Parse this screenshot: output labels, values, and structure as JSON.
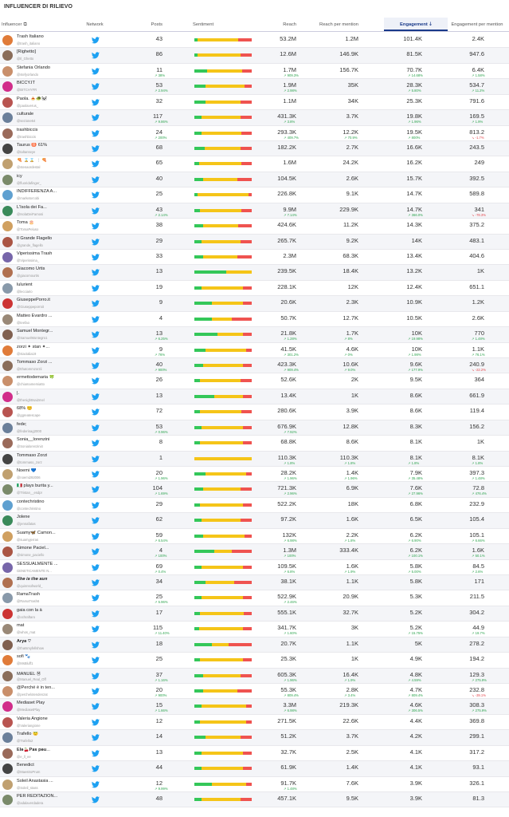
{
  "title": "INFLUENCER DI RILIEVO",
  "columns": {
    "influencer": "Influencer",
    "network": "Network",
    "posts": "Posts",
    "sentiment": "Sentiment",
    "reach": "Reach",
    "rpm": "Reach per mention",
    "engagement": "Engagement",
    "epm": "Engagement per mention"
  },
  "colors": {
    "positive": "#34c759",
    "neutral": "#f5c518",
    "negative": "#ef5350",
    "twitter": "#1da1f2"
  },
  "rows": [
    {
      "name": "Trash Italiano",
      "handle": "@trash_italiano",
      "posts": "43",
      "reach": "53.2M",
      "rpm": "1.2M",
      "eng": "101.4K",
      "epm": "2.4K",
      "s": [
        0.05,
        0.72,
        0.23
      ]
    },
    {
      "name": "[Righetto]",
      "handle": "@Il_Ghetto",
      "posts": "86",
      "reach": "12.6M",
      "rpm": "146.9K",
      "eng": "81.5K",
      "epm": "947.6",
      "s": [
        0.05,
        0.75,
        0.2
      ]
    },
    {
      "name": "Stefania Orlando",
      "handle": "@stefyorlando",
      "posts": "11",
      "dposts": "↗ 38%",
      "reach": "1.7M",
      "dreach": "↗ 909.3%",
      "rpm": "156.7K",
      "eng": "70.7K",
      "deng": "↗ 14.68%",
      "epm": "6.4K",
      "depm": "↗ 1.58%",
      "s": [
        0.22,
        0.62,
        0.16
      ]
    },
    {
      "name": "BICCY.IT",
      "handle": "@BITCHYFR",
      "posts": "53",
      "dposts": "↗ 2.94%",
      "reach": "1.9M",
      "dreach": "↗ 2.98%",
      "rpm": "35K",
      "eng": "28.3K",
      "deng": "↗ 5.80%",
      "epm": "534.7",
      "depm": "↗ 11.2%",
      "s": [
        0.2,
        0.68,
        0.12
      ]
    },
    {
      "name": "Paola. 🍝🐢🐼",
      "handle": "@paolaverus_",
      "posts": "32",
      "reach": "1.1M",
      "rpm": "34K",
      "eng": "25.3K",
      "epm": "791.6",
      "s": [
        0.2,
        0.6,
        0.2
      ]
    },
    {
      "name": "culturale",
      "handle": "@sezione64",
      "posts": "117",
      "dposts": "↗ 9.86%",
      "reach": "431.3K",
      "dreach": "↗ 3.8%",
      "rpm": "3.7K",
      "eng": "19.8K",
      "deng": "↗ 1.96%",
      "epm": "169.5",
      "depm": "↗ 1.9%",
      "s": [
        0.12,
        0.68,
        0.2
      ]
    },
    {
      "name": "trashbiccis",
      "handle": "@trashbiccis",
      "posts": "24",
      "dposts": "↗ 200%",
      "reach": "293.3K",
      "dreach": "↗ 409.7%",
      "rpm": "12.2K",
      "drpm": "↗ 70.9%",
      "eng": "19.5K",
      "deng": "↗ 800%",
      "epm": "813.2",
      "depm": "↘ -1.7%",
      "s": [
        0.12,
        0.7,
        0.18
      ]
    },
    {
      "name": "Taurus ♉ 61%",
      "handle": "@taltanseye",
      "posts": "68",
      "reach": "182.2K",
      "rpm": "2.7K",
      "eng": "16.6K",
      "epm": "243.5",
      "s": [
        0.18,
        0.62,
        0.2
      ]
    },
    {
      "name": "🍕 ⌛⌛ ❕🍕",
      "handle": "@stenaordestal",
      "posts": "65",
      "reach": "1.6M",
      "rpm": "24.2K",
      "eng": "16.2K",
      "epm": "249",
      "s": [
        0.08,
        0.74,
        0.18
      ]
    },
    {
      "name": "icy",
      "handle": "@fluoridafinger_",
      "posts": "40",
      "reach": "104.5K",
      "rpm": "2.6K",
      "eng": "15.7K",
      "epm": "392.5",
      "s": [
        0.15,
        0.6,
        0.25
      ]
    },
    {
      "name": "INDIFFERENZA A...",
      "handle": "@marketxrcobi",
      "posts": "25",
      "reach": "226.8K",
      "rpm": "9.1K",
      "eng": "14.7K",
      "epm": "589.8",
      "s": [
        0.05,
        0.9,
        0.05
      ]
    },
    {
      "name": "L'Isola dei Fa...",
      "handle": "@IsolaDeiFamosi",
      "posts": "43",
      "dposts": "↗ 2.14%",
      "reach": "9.9M",
      "dreach": "↗ 7.14%",
      "rpm": "229.9K",
      "eng": "14.7K",
      "deng": "↗ 366.0%",
      "epm": "341",
      "depm": "↘ -78.3%",
      "s": [
        0.1,
        0.72,
        0.18
      ]
    },
    {
      "name": "Toma 🎂",
      "handle": "@TomaPeluso",
      "posts": "38",
      "reach": "424.6K",
      "rpm": "11.2K",
      "eng": "14.3K",
      "epm": "375.2",
      "s": [
        0.15,
        0.62,
        0.23
      ]
    },
    {
      "name": "Il Grande Flagello",
      "handle": "@grande_flagello",
      "posts": "29",
      "reach": "265.7K",
      "rpm": "9.2K",
      "eng": "14K",
      "epm": "483.1",
      "s": [
        0.12,
        0.68,
        0.2
      ]
    },
    {
      "name": "Viperissima Trash",
      "handle": "@Viperissima_",
      "posts": "33",
      "reach": "2.3M",
      "rpm": "68.3K",
      "eng": "13.4K",
      "epm": "404.6",
      "s": [
        0.15,
        0.6,
        0.25
      ]
    },
    {
      "name": "Giacomo Urtis",
      "handle": "@giacomourtis",
      "posts": "13",
      "reach": "239.5K",
      "rpm": "18.4K",
      "eng": "13.2K",
      "epm": "1K",
      "s": [
        0.55,
        0.45,
        0
      ]
    },
    {
      "name": "lulurient",
      "handle": "@lecciario",
      "posts": "19",
      "reach": "228.1K",
      "rpm": "12K",
      "eng": "12.4K",
      "epm": "651.1",
      "s": [
        0.12,
        0.73,
        0.15
      ]
    },
    {
      "name": "GiuseppePorro.it",
      "handle": "@Giuseppeporroit",
      "posts": "9",
      "reach": "20.6K",
      "rpm": "2.3K",
      "eng": "10.9K",
      "epm": "1.2K",
      "s": [
        0.3,
        0.55,
        0.15
      ]
    },
    {
      "name": "Matteo Evardro ...",
      "handle": "@teefao",
      "posts": "4",
      "reach": "50.7K",
      "rpm": "12.7K",
      "eng": "10.5K",
      "epm": "2.6K",
      "s": [
        0.3,
        0.35,
        0.35
      ]
    },
    {
      "name": "Samuel Montegr...",
      "handle": "@SamuelMontegro1",
      "posts": "13",
      "dposts": "↗ 6.25%",
      "reach": "21.8K",
      "dreach": "↗ 1.28%",
      "rpm": "1.7K",
      "drpm": "↗ 8%",
      "eng": "10K",
      "deng": "↗ 19.98%",
      "epm": "770",
      "depm": "↗ 1.48%",
      "s": [
        0.4,
        0.45,
        0.15
      ]
    },
    {
      "name": "zorzi ✦ stan ✦...",
      "handle": "@stactalia19",
      "posts": "9",
      "dposts": "↗ 76%",
      "reach": "41.5K",
      "dreach": "↗ 301.2%",
      "rpm": "4.6K",
      "drpm": "↗ 0%",
      "eng": "10K",
      "deng": "↗ 1.98%",
      "epm": "1.1K",
      "depm": "↗ 76.1%",
      "s": [
        0.2,
        0.7,
        0.1
      ]
    },
    {
      "name": "Tommaso Zorzi ...",
      "handle": "@tthatommzorzii",
      "posts": "40",
      "dposts": "↗ 900%",
      "reach": "423.3K",
      "dreach": "↗ 909.4%",
      "rpm": "10.6K",
      "drpm": "↗ 9.0%",
      "eng": "9.6K",
      "deng": "↗ 177.9%",
      "epm": "240.9",
      "depm": "↘ -22.2%",
      "s": [
        0.15,
        0.7,
        0.15
      ]
    },
    {
      "name": "ermettodemaria 🍀",
      "handle": "@chiamamemiatto",
      "posts": "26",
      "reach": "52.6K",
      "rpm": "2K",
      "eng": "9.5K",
      "epm": "364",
      "s": [
        0.1,
        0.7,
        0.2
      ]
    },
    {
      "name": "|.",
      "handle": "@thenighttsai2mel",
      "posts": "13",
      "reach": "13.4K",
      "rpm": "1K",
      "eng": "8.6K",
      "epm": "661.9",
      "s": [
        0.35,
        0.5,
        0.15
      ]
    },
    {
      "name": "68% 😊",
      "handle": "@ggreatescape",
      "posts": "72",
      "reach": "280.6K",
      "rpm": "3.9K",
      "eng": "8.6K",
      "epm": "119.4",
      "s": [
        0.1,
        0.72,
        0.18
      ]
    },
    {
      "name": "fede;",
      "handle": "@federinag2000",
      "posts": "53",
      "dposts": "↗ 0.96%",
      "reach": "676.9K",
      "dreach": "↗ 7.92%",
      "rpm": "12.8K",
      "eng": "8.3K",
      "epm": "156.2",
      "s": [
        0.12,
        0.73,
        0.15
      ]
    },
    {
      "name": "Sonia__lorenzini",
      "handle": "@Sonialorenzini4",
      "posts": "8",
      "reach": "68.8K",
      "rpm": "8.6K",
      "eng": "8.1K",
      "epm": "1K",
      "s": [
        0.1,
        0.75,
        0.15
      ]
    },
    {
      "name": "Tommaso Zorzi",
      "handle": "@tommaso_zorz",
      "posts": "1",
      "reach": "110.3K",
      "dreach": "↗ 1.8%",
      "rpm": "110.3K",
      "drpm": "↗ 1.8%",
      "eng": "8.1K",
      "deng": "↗ 1.8%",
      "epm": "8.1K",
      "depm": "↗ 1.8%",
      "s": [
        0,
        1,
        0
      ]
    },
    {
      "name": "Noemi 💙",
      "handle": "@noemi292006",
      "posts": "20",
      "dposts": "↗ 1.96%",
      "reach": "28.2K",
      "dreach": "↗ 1.96%",
      "rpm": "1.4K",
      "drpm": "↗ 1.96%",
      "eng": "7.9K",
      "deng": "↗ 35.48%",
      "epm": "397.3",
      "depm": "↗ 1.48%",
      "s": [
        0.2,
        0.7,
        0.1
      ]
    },
    {
      "name": "🇮🇹 plays burita y...",
      "handle": "@Tristan__esdpr",
      "posts": "104",
      "dposts": "↗ 1.69%",
      "reach": "721.3K",
      "dreach": "↗ 2.96%",
      "rpm": "6.9K",
      "eng": "7.6K",
      "deng": "↗ 27.96%",
      "epm": "72.8",
      "depm": "↗ 476.4%",
      "s": [
        0.15,
        0.65,
        0.2
      ]
    },
    {
      "name": "contechristino",
      "handle": "@contechristino",
      "posts": "29",
      "reach": "522.2K",
      "rpm": "18K",
      "eng": "6.8K",
      "epm": "232.9",
      "s": [
        0.1,
        0.75,
        0.15
      ]
    },
    {
      "name": "Jolene",
      "handle": "@jennafatas",
      "posts": "62",
      "reach": "97.2K",
      "rpm": "1.6K",
      "eng": "6.5K",
      "epm": "105.4",
      "s": [
        0.12,
        0.68,
        0.2
      ]
    },
    {
      "name": "Suamy🦋 Camon...",
      "handle": "@suamyjerras",
      "posts": "59",
      "dposts": "↗ 6.54%",
      "reach": "132K",
      "dreach": "↗ 6.98%",
      "rpm": "2.2K",
      "drpm": "↗ 1.8%",
      "eng": "6.2K",
      "deng": "↗ 6.90%",
      "epm": "105.1",
      "depm": "↗ 6.66%",
      "s": [
        0.15,
        0.72,
        0.13
      ]
    },
    {
      "name": "Simone Paciel...",
      "handle": "@simone_paciello",
      "posts": "4",
      "dposts": "↗ 100%",
      "reach": "1.3M",
      "dreach": "↗ 100%",
      "rpm": "333.4K",
      "eng": "6.2K",
      "deng": "↗ 100.1%",
      "epm": "1.6K",
      "depm": "↗ 50.1%",
      "s": [
        0.35,
        0.3,
        0.35
      ]
    },
    {
      "name": "SESSUALMENTE ...",
      "handle": "GENETICAMENTE N...",
      "posts": "69",
      "dposts": "↗ 0.4%",
      "reach": "109.5K",
      "dreach": "↗ 6.8%",
      "rpm": "1.6K",
      "drpm": "↗ 1.9%",
      "eng": "5.8K",
      "deng": "↗ 5.00%",
      "epm": "84.5",
      "depm": "↗ 2.6%",
      "s": [
        0.12,
        0.73,
        0.15
      ]
    },
    {
      "name": "𝑺𝒉𝒆 𝒊𝒔 𝒕𝒉𝒆 𝒔𝒖𝒏",
      "handle": "@quinnsofworld_",
      "posts": "34",
      "reach": "38.1K",
      "rpm": "1.1K",
      "eng": "5.8K",
      "epm": "171",
      "s": [
        0.2,
        0.5,
        0.3
      ]
    },
    {
      "name": "RamaTrash",
      "handle": "@RamaTrash6",
      "posts": "25",
      "dposts": "↗ 5.96%",
      "reach": "522.9K",
      "dreach": "↗ 2.46%",
      "rpm": "20.9K",
      "eng": "5.3K",
      "epm": "211.5",
      "s": [
        0.12,
        0.73,
        0.15
      ]
    },
    {
      "name": "gaia con la à",
      "handle": "@ochraftaro",
      "posts": "17",
      "reach": "555.1K",
      "rpm": "32.7K",
      "eng": "5.2K",
      "epm": "304.2",
      "s": [
        0.1,
        0.76,
        0.14
      ]
    },
    {
      "name": "mat",
      "handle": "@whos_mat",
      "posts": "115",
      "dposts": "↗ 11.40%",
      "reach": "341.7K",
      "dreach": "↗ 1.60%",
      "rpm": "3K",
      "eng": "5.2K",
      "deng": "↗ 15.75%",
      "epm": "44.9",
      "depm": "↗ 19.7%",
      "s": [
        0.08,
        0.77,
        0.15
      ]
    },
    {
      "name": "𝐀𝐫𝐲𝐞 ♡",
      "handle": "@thatsmyfellshow",
      "posts": "18",
      "reach": "20.7K",
      "rpm": "1.1K",
      "eng": "5K",
      "epm": "278.2",
      "s": [
        0.3,
        0.3,
        0.4
      ]
    },
    {
      "name": "sofi 🐾",
      "handle": "@MsBluff1",
      "posts": "25",
      "reach": "25.3K",
      "rpm": "1K",
      "eng": "4.9K",
      "epm": "194.2",
      "s": [
        0.1,
        0.75,
        0.15
      ]
    },
    {
      "name": "MANUEL Ⓜ",
      "handle": "@Manuel_Real_Off",
      "posts": "37",
      "dposts": "↗ 1.16%",
      "reach": "605.3K",
      "dreach": "↗ 1.96%",
      "rpm": "16.4K",
      "drpm": "↗ 1.9%",
      "eng": "4.8K",
      "deng": "↗ 4.59%",
      "epm": "129.3",
      "depm": "↗ 275.9%",
      "s": [
        0.15,
        0.65,
        0.2
      ]
    },
    {
      "name": "@Perché è in ten...",
      "handle": "@perchelotendenzat",
      "posts": "20",
      "dposts": "↗ 900%",
      "reach": "55.3K",
      "dreach": "↗ 809.4%",
      "rpm": "2.8K",
      "drpm": "↗ 3.4%",
      "eng": "4.7K",
      "deng": "↗ 809.4%",
      "epm": "232.8",
      "depm": "↘ -39.1%",
      "s": [
        0.15,
        0.6,
        0.25
      ]
    },
    {
      "name": "Mediaset Play",
      "handle": "@MediasetPlay",
      "posts": "15",
      "dposts": "↗ 1.66%",
      "reach": "3.3M",
      "dreach": "↗ 6.98%",
      "rpm": "219.3K",
      "eng": "4.6K",
      "deng": "↗ 306.5%",
      "epm": "308.3",
      "depm": "↗ 275.9%",
      "s": [
        0.12,
        0.78,
        0.1
      ]
    },
    {
      "name": "Valeria Angione",
      "handle": "@Valeriangione",
      "posts": "12",
      "reach": "271.5K",
      "rpm": "22.6K",
      "eng": "4.4K",
      "epm": "369.8",
      "s": [
        0.1,
        0.8,
        0.1
      ]
    },
    {
      "name": "Trafello 😇",
      "handle": "@Trafello2",
      "posts": "14",
      "reach": "51.2K",
      "rpm": "3.7K",
      "eng": "4.2K",
      "epm": "299.1",
      "s": [
        0.2,
        0.6,
        0.2
      ]
    },
    {
      "name": "𝐄𝐥𝐞🍒𝐏𝐚𝐬 𝐩𝐞𝐮...",
      "handle": "@e_ll_ee",
      "posts": "13",
      "reach": "32.7K",
      "rpm": "2.5K",
      "eng": "4.1K",
      "epm": "317.2",
      "s": [
        0.12,
        0.73,
        0.15
      ]
    },
    {
      "name": "Benedict",
      "handle": "@MaestroPrum",
      "posts": "44",
      "reach": "61.9K",
      "rpm": "1.4K",
      "eng": "4.1K",
      "epm": "93.1",
      "s": [
        0.12,
        0.73,
        0.15
      ]
    },
    {
      "name": "Soleil Anastasia ...",
      "handle": "@Soleil_stass",
      "posts": "12",
      "dposts": "↗ 9.99%",
      "reach": "91.7K",
      "dreach": "↗ 1.48%",
      "rpm": "7.6K",
      "eng": "3.9K",
      "epm": "326.1",
      "s": [
        0.3,
        0.6,
        0.1
      ]
    },
    {
      "name": "PER REDITAZION...",
      "handle": "@adalaverdadera",
      "posts": "48",
      "reach": "457.1K",
      "rpm": "9.5K",
      "eng": "3.9K",
      "epm": "81.3",
      "s": [
        0.12,
        0.68,
        0.2
      ]
    }
  ]
}
